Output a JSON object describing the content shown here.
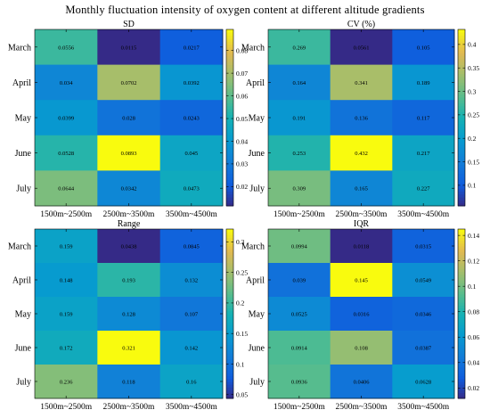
{
  "title": "Monthly fluctuation intensity of oxygen content at different altitude gradients",
  "chart_data": [
    {
      "type": "heatmap",
      "title": "SD",
      "rows": [
        "March",
        "April",
        "May",
        "June",
        "July"
      ],
      "columns": [
        "1500m~2500m",
        "2500m~3500m",
        "3500m~4500m"
      ],
      "values": [
        [
          0.0556,
          0.0115,
          0.0217
        ],
        [
          0.034,
          0.0702,
          0.0392
        ],
        [
          0.0399,
          0.028,
          0.0243
        ],
        [
          0.0528,
          0.0893,
          0.045
        ],
        [
          0.0644,
          0.0342,
          0.0473
        ]
      ],
      "labels": [
        [
          "0.0556",
          "0.0115",
          "0.0217"
        ],
        [
          "0.034",
          "0.0702",
          "0.0392"
        ],
        [
          "0.0399",
          "0.028",
          "0.0243"
        ],
        [
          "0.0528",
          "0.0893",
          "0.045"
        ],
        [
          "0.0644",
          "0.0342",
          "0.0473"
        ]
      ],
      "clim": [
        0.0115,
        0.0893
      ],
      "colorbar_ticks": [
        0.02,
        0.03,
        0.04,
        0.05,
        0.06,
        0.07,
        0.08
      ],
      "colorbar_labels": [
        "0.02",
        "0.03",
        "0.04",
        "0.05",
        "0.06",
        "0.07",
        "0.08"
      ],
      "colormap": "parula"
    },
    {
      "type": "heatmap",
      "title": "CV (%)",
      "rows": [
        "March",
        "April",
        "May",
        "June",
        "July"
      ],
      "columns": [
        "1500m~2500m",
        "2500m~3500m",
        "3500m~4500m"
      ],
      "values": [
        [
          0.269,
          0.0561,
          0.105
        ],
        [
          0.164,
          0.341,
          0.189
        ],
        [
          0.191,
          0.136,
          0.117
        ],
        [
          0.253,
          0.432,
          0.217
        ],
        [
          0.309,
          0.165,
          0.227
        ]
      ],
      "labels": [
        [
          "0.269",
          "0.0561",
          "0.105"
        ],
        [
          "0.164",
          "0.341",
          "0.189"
        ],
        [
          "0.191",
          "0.136",
          "0.117"
        ],
        [
          "0.253",
          "0.432",
          "0.217"
        ],
        [
          "0.309",
          "0.165",
          "0.227"
        ]
      ],
      "clim": [
        0.0561,
        0.432
      ],
      "colorbar_ticks": [
        0.1,
        0.15,
        0.2,
        0.25,
        0.3,
        0.35,
        0.4
      ],
      "colorbar_labels": [
        "0.1",
        "0.15",
        "0.2",
        "0.25",
        "0.3",
        "0.35",
        "0.4"
      ],
      "colormap": "parula"
    },
    {
      "type": "heatmap",
      "title": "Range",
      "rows": [
        "March",
        "April",
        "May",
        "June",
        "July"
      ],
      "columns": [
        "1500m~2500m",
        "2500m~3500m",
        "3500m~4500m"
      ],
      "values": [
        [
          0.159,
          0.0438,
          0.0845
        ],
        [
          0.148,
          0.193,
          0.132
        ],
        [
          0.159,
          0.128,
          0.107
        ],
        [
          0.172,
          0.321,
          0.142
        ],
        [
          0.236,
          0.118,
          0.16
        ]
      ],
      "labels": [
        [
          "0.159",
          "0.0438",
          "0.0845"
        ],
        [
          "0.148",
          "0.193",
          "0.132"
        ],
        [
          "0.159",
          "0.128",
          "0.107"
        ],
        [
          "0.172",
          "0.321",
          "0.142"
        ],
        [
          "0.236",
          "0.118",
          "0.16"
        ]
      ],
      "clim": [
        0.0438,
        0.321
      ],
      "colorbar_ticks": [
        0.05,
        0.1,
        0.15,
        0.2,
        0.25,
        0.3
      ],
      "colorbar_labels": [
        "0.05",
        "0.1",
        "0.15",
        "0.2",
        "0.25",
        "0.3"
      ],
      "colormap": "parula"
    },
    {
      "type": "heatmap",
      "title": "IQR",
      "rows": [
        "March",
        "April",
        "May",
        "June",
        "July"
      ],
      "columns": [
        "1500m~2500m",
        "2500m~3500m",
        "3500m~4500m"
      ],
      "values": [
        [
          0.0994,
          0.0118,
          0.0315
        ],
        [
          0.039,
          0.145,
          0.0549
        ],
        [
          0.0525,
          0.0316,
          0.0346
        ],
        [
          0.0914,
          0.108,
          0.0387
        ],
        [
          0.0936,
          0.0406,
          0.0628
        ]
      ],
      "labels": [
        [
          "0.0994",
          "0.0118",
          "0.0315"
        ],
        [
          "0.039",
          "0.145",
          "0.0549"
        ],
        [
          "0.0525",
          "0.0316",
          "0.0346"
        ],
        [
          "0.0914",
          "0.108",
          "0.0387"
        ],
        [
          "0.0936",
          "0.0406",
          "0.0628"
        ]
      ],
      "clim": [
        0.0118,
        0.145
      ],
      "colorbar_ticks": [
        0.02,
        0.04,
        0.06,
        0.08,
        0.1,
        0.12,
        0.14
      ],
      "colorbar_labels": [
        "0.02",
        "0.04",
        "0.06",
        "0.08",
        "0.1",
        "0.12",
        "0.14"
      ],
      "colormap": "parula"
    }
  ]
}
